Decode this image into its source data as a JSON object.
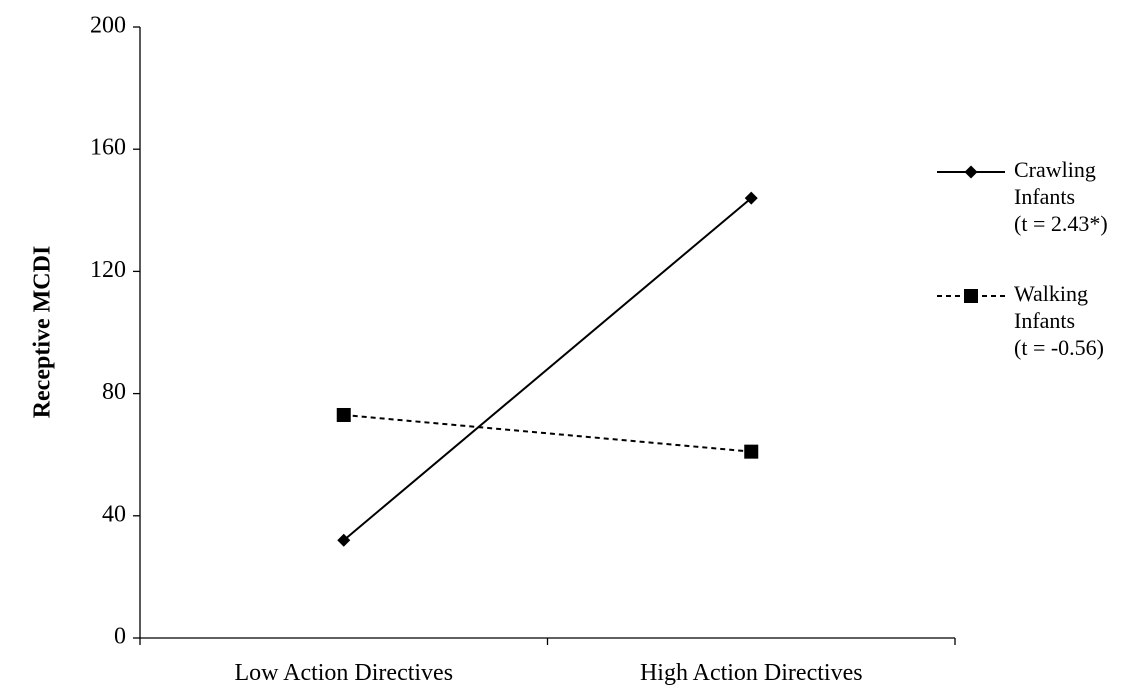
{
  "chart_data": {
    "type": "line",
    "categories": [
      "Low Action Directives",
      "High Action Directives"
    ],
    "series": [
      {
        "name": "Crawling Infants (t = 2.43*)",
        "legend_lines": [
          "Crawling",
          "Infants",
          "(t = 2.43*)"
        ],
        "values": [
          32,
          144
        ],
        "line_style": "solid",
        "marker": "diamond",
        "color": "#000000"
      },
      {
        "name": "Walking Infants (t = -0.56)",
        "legend_lines": [
          "Walking",
          "Infants",
          "(t = -0.56)"
        ],
        "values": [
          73,
          61
        ],
        "line_style": "dashed",
        "marker": "square",
        "color": "#000000"
      }
    ],
    "title": "",
    "xlabel": "",
    "ylabel": "Receptive MCDI",
    "ylim": [
      0,
      200
    ],
    "yticks": [
      0,
      40,
      80,
      120,
      160,
      200
    ],
    "grid": false,
    "legend_position": "right"
  }
}
